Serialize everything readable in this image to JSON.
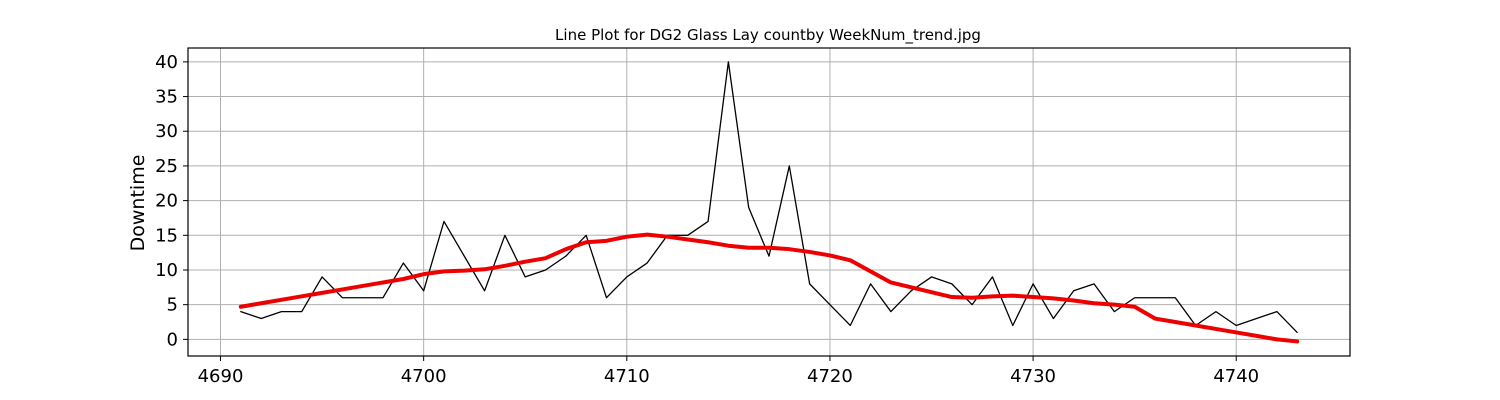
{
  "chart_data": {
    "type": "line",
    "title": "Line Plot for DG2 Glass Lay countby WeekNum_trend.jpg",
    "xlabel": "",
    "ylabel": "Downtime",
    "xlim": [
      4688.4,
      4745.6
    ],
    "ylim": [
      -2.4,
      42.0
    ],
    "xticks": [
      4690,
      4700,
      4710,
      4720,
      4730,
      4740
    ],
    "yticks": [
      0,
      5,
      10,
      15,
      20,
      25,
      30,
      35,
      40
    ],
    "grid": true,
    "series": [
      {
        "role": "raw",
        "color": "#000000",
        "x": [
          4691,
          4692,
          4693,
          4694,
          4695,
          4696,
          4697,
          4698,
          4699,
          4700,
          4701,
          4702,
          4703,
          4704,
          4705,
          4706,
          4707,
          4708,
          4709,
          4710,
          4711,
          4712,
          4713,
          4714,
          4715,
          4716,
          4717,
          4718,
          4719,
          4720,
          4721,
          4722,
          4723,
          4724,
          4725,
          4726,
          4727,
          4728,
          4729,
          4730,
          4731,
          4732,
          4733,
          4734,
          4735,
          4736,
          4737,
          4738,
          4739,
          4740,
          4741,
          4742,
          4743
        ],
        "y": [
          4,
          3,
          4,
          4,
          9,
          6,
          6,
          6,
          11,
          7,
          17,
          12,
          7,
          15,
          9,
          10,
          12,
          15,
          6,
          9,
          11,
          15,
          15,
          17,
          40,
          19,
          12,
          25,
          8,
          5,
          2,
          8,
          4,
          7,
          9,
          8,
          5,
          9,
          2,
          8,
          3,
          7,
          8,
          4,
          6,
          6,
          6,
          2,
          4,
          2,
          3,
          4,
          1
        ]
      },
      {
        "role": "trend",
        "color": "#ee0000",
        "x": [
          4691,
          4692,
          4693,
          4694,
          4695,
          4696,
          4697,
          4698,
          4699,
          4700,
          4701,
          4702,
          4703,
          4704,
          4705,
          4706,
          4707,
          4708,
          4709,
          4710,
          4711,
          4712,
          4713,
          4714,
          4715,
          4716,
          4717,
          4718,
          4719,
          4720,
          4721,
          4722,
          4723,
          4724,
          4725,
          4726,
          4727,
          4728,
          4729,
          4730,
          4731,
          4732,
          4733,
          4734,
          4735,
          4736,
          4737,
          4738,
          4739,
          4740,
          4741,
          4742,
          4743
        ],
        "y": [
          4.7,
          5.2,
          5.7,
          6.2,
          6.7,
          7.2,
          7.7,
          8.2,
          8.7,
          9.4,
          9.8,
          9.9,
          10.1,
          10.6,
          11.2,
          11.7,
          13.0,
          14.0,
          14.2,
          14.8,
          15.1,
          14.8,
          14.4,
          14.0,
          13.5,
          13.2,
          13.2,
          13.0,
          12.6,
          12.1,
          11.4,
          9.8,
          8.2,
          7.5,
          6.8,
          6.1,
          6.0,
          6.2,
          6.3,
          6.1,
          5.9,
          5.6,
          5.2,
          5.0,
          4.7,
          3.0,
          2.5,
          2.0,
          1.5,
          1.0,
          0.5,
          0.0,
          -0.3
        ]
      }
    ]
  }
}
